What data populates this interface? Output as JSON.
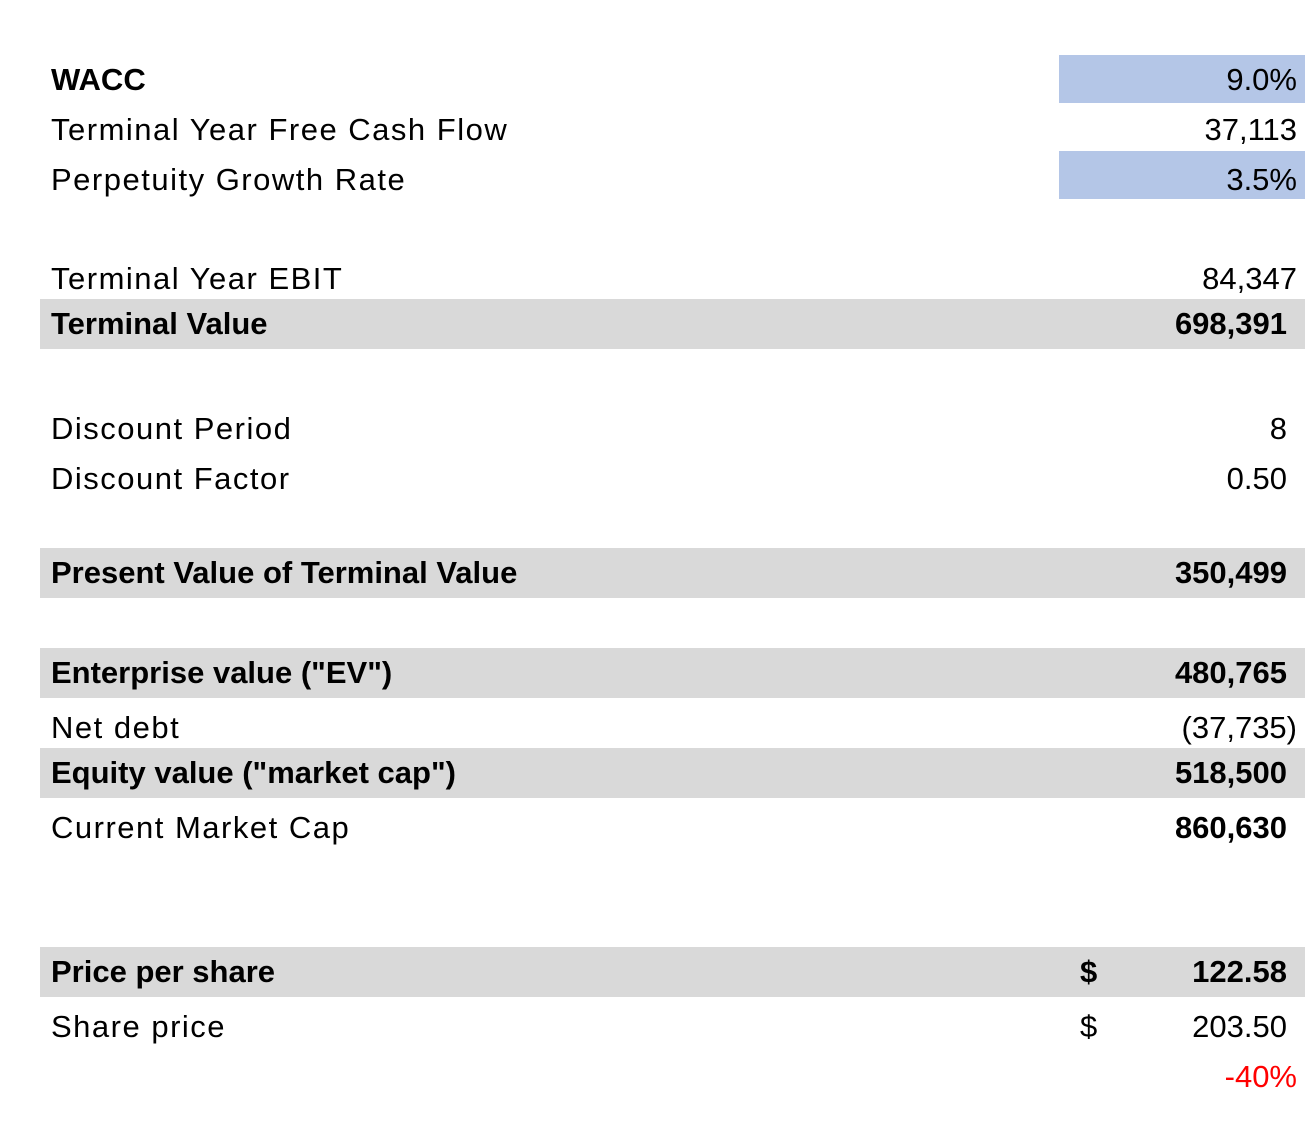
{
  "rows": {
    "wacc": {
      "label": "WACC",
      "value": "9.0%"
    },
    "terminal_fcf": {
      "label": "Terminal Year Free Cash Flow",
      "value": "37,113"
    },
    "growth_rate": {
      "label": "Perpetuity Growth Rate",
      "value": "3.5%"
    },
    "terminal_ebit": {
      "label": "Terminal Year EBIT",
      "value": "84,347"
    },
    "terminal_value": {
      "label": "Terminal Value",
      "value": "698,391"
    },
    "discount_period": {
      "label": "Discount Period",
      "value": "8"
    },
    "discount_factor": {
      "label": "Discount Factor",
      "value": "0.50"
    },
    "pv_terminal_value": {
      "label": "Present Value of Terminal Value",
      "value": "350,499"
    },
    "enterprise_value": {
      "label": "Enterprise value (\"EV\")",
      "value": "480,765"
    },
    "net_debt": {
      "label": "Net debt",
      "value": "(37,735)"
    },
    "equity_value": {
      "label": "Equity value (\"market cap\")",
      "value": "518,500"
    },
    "current_market_cap": {
      "label": "Current Market Cap",
      "value": "860,630"
    },
    "price_per_share": {
      "label": "Price per share",
      "currency": "$",
      "value": "122.58"
    },
    "share_price": {
      "label": "Share price",
      "currency": "$",
      "value": "203.50"
    },
    "upside": {
      "value": "-40%"
    }
  },
  "colors": {
    "input_fill": "#b4c6e7",
    "shaded_fill": "#d9d9d9",
    "negative_text": "#ff0000"
  }
}
